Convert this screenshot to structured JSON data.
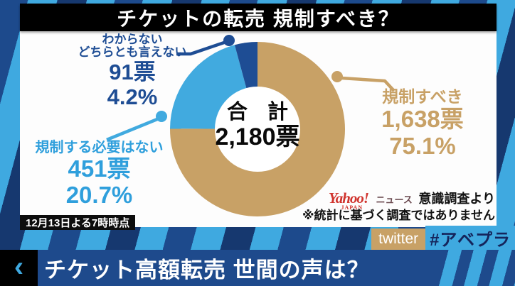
{
  "title": "チケットの転売 規制すべき？",
  "chart_data": {
    "type": "pie",
    "title": "チケットの転売 規制すべき？",
    "total": 2180,
    "center_label": "合 計",
    "center_value": "2,180票",
    "slices": [
      {
        "label": "規制すべき",
        "value": 1638,
        "votes_label": "1,638票",
        "pct": 75.1,
        "pct_label": "75.1%",
        "color": "#c8a166"
      },
      {
        "label": "規制する必要はない",
        "value": 451,
        "votes_label": "451票",
        "pct": 20.7,
        "pct_label": "20.7%",
        "color": "#41aadf"
      },
      {
        "label_lines": [
          "わからない",
          "どちらとも言えない"
        ],
        "value": 91,
        "votes_label": "91票",
        "pct": 4.2,
        "pct_label": "4.2%",
        "color": "#1e4d94"
      }
    ],
    "hole_color": "#ffffff",
    "legend_position": "callouts"
  },
  "source": {
    "logo": "Yahoo!",
    "logo_sub": "JAPAN",
    "logo_suffix": "ニュース",
    "text": "意識調査より",
    "disclaimer": "※統計に基づく調査ではありません",
    "logo_color": "#d0342e"
  },
  "timestamp": "12月13日よる7時時点",
  "social": {
    "platform": "twitter",
    "hashtag": "#アベプラ"
  },
  "ticker": {
    "back_glyph": "‹",
    "headline": "チケット高額転売 世間の声は？"
  },
  "colors": {
    "stripe_light": "#3fa9e0",
    "stripe_dark": "#1d4a8c",
    "bar_blue": "#1e4a8c",
    "badge_tan": "#c8a166",
    "title_bg": "#000000",
    "panel_bg": "#fdfdfd"
  }
}
